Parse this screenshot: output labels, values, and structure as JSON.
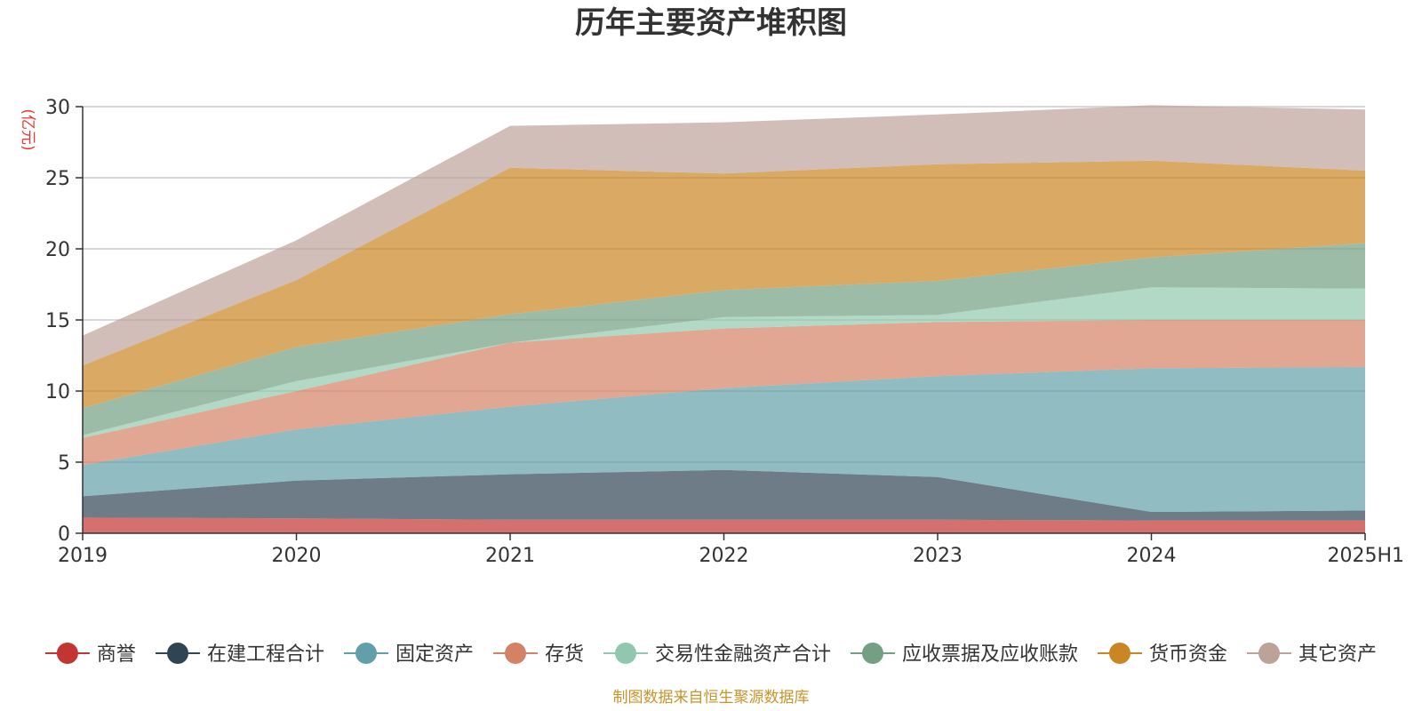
{
  "chart_data": {
    "type": "area",
    "stacked": true,
    "title": "历年主要资产堆积图",
    "ylabel": "(亿元)",
    "xlabel": "",
    "categories": [
      "2019",
      "2020",
      "2021",
      "2022",
      "2023",
      "2024",
      "2025H1"
    ],
    "ylim": [
      0,
      30
    ],
    "yticks": [
      0,
      5,
      10,
      15,
      20,
      25,
      30
    ],
    "grid": true,
    "legend_position": "bottom",
    "series": [
      {
        "name": "商誉",
        "color": "#c23531",
        "values": [
          1.1,
          1.05,
          0.95,
          0.95,
          0.95,
          0.9,
          0.9
        ]
      },
      {
        "name": "在建工程合计",
        "color": "#2f4554",
        "values": [
          1.5,
          2.65,
          3.2,
          3.5,
          3.0,
          0.6,
          0.7
        ]
      },
      {
        "name": "固定资产",
        "color": "#61a0a8",
        "values": [
          2.2,
          3.6,
          4.75,
          5.75,
          7.1,
          10.1,
          10.1
        ]
      },
      {
        "name": "存货",
        "color": "#d48265",
        "values": [
          1.9,
          2.7,
          4.5,
          4.2,
          3.8,
          3.4,
          3.3
        ]
      },
      {
        "name": "交易性金融资产合计",
        "color": "#91c7ae",
        "values": [
          0.2,
          0.7,
          0.0,
          0.8,
          0.5,
          2.3,
          2.2
        ]
      },
      {
        "name": "应收票据及应收账款",
        "color": "#749f83",
        "values": [
          1.9,
          2.4,
          2.0,
          1.9,
          2.4,
          2.1,
          3.2
        ]
      },
      {
        "name": "货币资金",
        "color": "#ca8622",
        "values": [
          3.0,
          4.7,
          10.3,
          8.2,
          8.2,
          6.8,
          5.1
        ]
      },
      {
        "name": "其它资产",
        "color": "#bda29a",
        "values": [
          2.1,
          2.8,
          2.95,
          3.6,
          3.5,
          3.9,
          4.3
        ]
      }
    ]
  },
  "footer": {
    "source": "制图数据来自恒生聚源数据库"
  }
}
